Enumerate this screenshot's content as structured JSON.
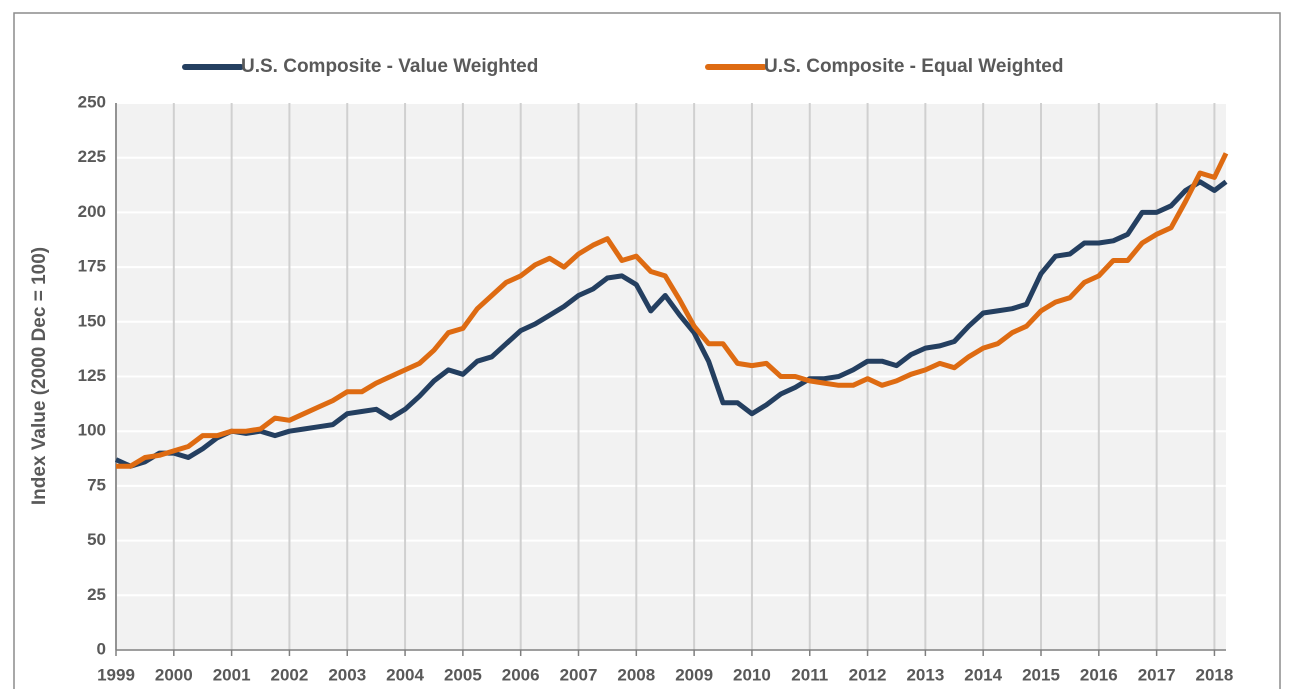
{
  "chart_data": {
    "type": "line",
    "y_label": "Index Value (2000 Dec = 100)",
    "x": [
      1999,
      1999.25,
      1999.5,
      1999.75,
      2000,
      2000.25,
      2000.5,
      2000.75,
      2001,
      2001.25,
      2001.5,
      2001.75,
      2002,
      2002.25,
      2002.5,
      2002.75,
      2003,
      2003.25,
      2003.5,
      2003.75,
      2004,
      2004.25,
      2004.5,
      2004.75,
      2005,
      2005.25,
      2005.5,
      2005.75,
      2006,
      2006.25,
      2006.5,
      2006.75,
      2007,
      2007.25,
      2007.5,
      2007.75,
      2008,
      2008.25,
      2008.5,
      2008.75,
      2009,
      2009.25,
      2009.5,
      2009.75,
      2010,
      2010.25,
      2010.5,
      2010.75,
      2011,
      2011.25,
      2011.5,
      2011.75,
      2012,
      2012.25,
      2012.5,
      2012.75,
      2013,
      2013.25,
      2013.5,
      2013.75,
      2014,
      2014.25,
      2014.5,
      2014.75,
      2015,
      2015.25,
      2015.5,
      2015.75,
      2016,
      2016.25,
      2016.5,
      2016.75,
      2017,
      2017.25,
      2017.5,
      2017.75,
      2018,
      2018.2
    ],
    "series": [
      {
        "name": "U.S. Composite - Value Weighted",
        "color": "#243f60",
        "values": [
          87,
          84,
          86,
          90,
          90,
          88,
          92,
          97,
          100,
          99,
          100,
          98,
          100,
          101,
          102,
          103,
          108,
          109,
          110,
          106,
          110,
          116,
          123,
          128,
          126,
          132,
          134,
          140,
          146,
          149,
          153,
          157,
          162,
          165,
          170,
          171,
          167,
          155,
          162,
          153,
          145,
          132,
          113,
          113,
          108,
          112,
          117,
          120,
          124,
          124,
          125,
          128,
          132,
          132,
          130,
          135,
          138,
          139,
          141,
          148,
          154,
          155,
          156,
          158,
          172,
          180,
          181,
          186,
          186,
          187,
          190,
          200,
          200,
          203,
          210,
          214,
          210,
          214
        ]
      },
      {
        "name": "U.S. Composite - Equal Weighted",
        "color": "#de6b12",
        "values": [
          84,
          84,
          88,
          89,
          91,
          93,
          98,
          98,
          100,
          100,
          101,
          106,
          105,
          108,
          111,
          114,
          118,
          118,
          122,
          125,
          128,
          131,
          137,
          145,
          147,
          156,
          162,
          168,
          171,
          176,
          179,
          175,
          181,
          185,
          188,
          178,
          180,
          173,
          171,
          160,
          148,
          140,
          140,
          131,
          130,
          131,
          125,
          125,
          123,
          122,
          121,
          121,
          124,
          121,
          123,
          126,
          128,
          131,
          129,
          134,
          138,
          140,
          145,
          148,
          155,
          159,
          161,
          168,
          171,
          178,
          178,
          186,
          190,
          193,
          205,
          218,
          216,
          227
        ]
      }
    ],
    "xlim": [
      1999,
      2018.2
    ],
    "xticks": [
      1999,
      2000,
      2001,
      2002,
      2003,
      2004,
      2005,
      2006,
      2007,
      2008,
      2009,
      2010,
      2011,
      2012,
      2013,
      2014,
      2015,
      2016,
      2017,
      2018
    ],
    "ylim": [
      0,
      250
    ],
    "yticks": [
      0,
      25,
      50,
      75,
      100,
      125,
      150,
      175,
      200,
      225,
      250
    ],
    "grid": true,
    "legend": "top"
  }
}
